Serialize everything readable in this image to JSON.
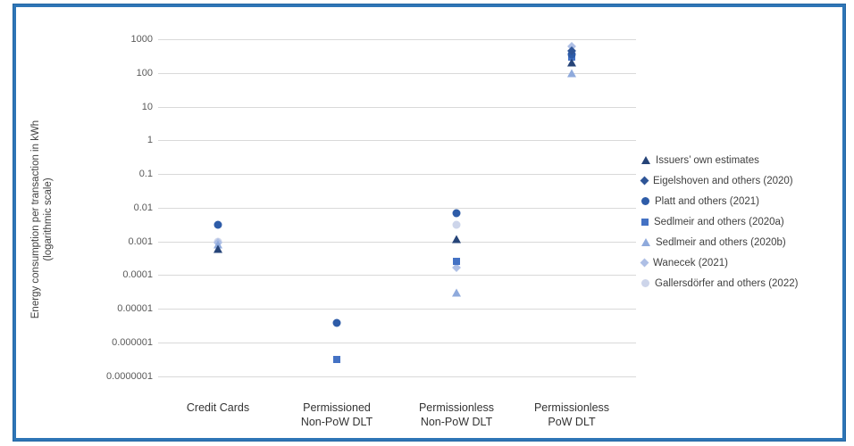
{
  "chart_data": {
    "type": "scatter",
    "y_axis_title_line1": "Energy consumption per transaction in kWh",
    "y_axis_title_line2": "(logarithmic scale)",
    "y_scale": "log10",
    "ylim": [
      1e-07,
      1000
    ],
    "grid": "horizontal",
    "legend_position": "right",
    "y_ticks": [
      "1000",
      "100",
      "10",
      "1",
      "0.1",
      "0.01",
      "0.001",
      "0.0001",
      "0.00001",
      "0.000001",
      "0.0000001"
    ],
    "categories": [
      {
        "key": "credit-cards",
        "lines": [
          "Credit Cards"
        ]
      },
      {
        "key": "permissioned-non-pow",
        "lines": [
          "Permissioned",
          "Non-PoW DLT"
        ]
      },
      {
        "key": "permissionless-non-pow",
        "lines": [
          "Permissionless",
          "Non-PoW DLT"
        ]
      },
      {
        "key": "permissionless-pow",
        "lines": [
          "Permissionless",
          "PoW DLT"
        ]
      }
    ],
    "series": [
      {
        "name": "Issuers’ own estimates",
        "marker": "triangle",
        "color": "#264478",
        "points": [
          {
            "category_index": 0,
            "value": 0.0006
          },
          {
            "category_index": 2,
            "value": 0.0012
          },
          {
            "category_index": 3,
            "value": 200
          }
        ]
      },
      {
        "name": "Eigelshoven and others (2020)",
        "marker": "diamond",
        "color": "#2F5597",
        "points": [
          {
            "category_index": 3,
            "value": 450
          }
        ]
      },
      {
        "name": "Platt and others (2021)",
        "marker": "circle",
        "color": "#2E5CA8",
        "points": [
          {
            "category_index": 0,
            "value": 0.003
          },
          {
            "category_index": 1,
            "value": 3.8e-06
          },
          {
            "category_index": 2,
            "value": 0.007
          },
          {
            "category_index": 3,
            "value": 350
          }
        ]
      },
      {
        "name": "Sedlmeir and others (2020a)",
        "marker": "square",
        "color": "#4472C4",
        "points": [
          {
            "category_index": 1,
            "value": 3e-07
          },
          {
            "category_index": 2,
            "value": 0.00026
          },
          {
            "category_index": 3,
            "value": 300
          }
        ]
      },
      {
        "name": "Sedlmeir and others (2020b)",
        "marker": "triangle",
        "color": "#8FAADC",
        "points": [
          {
            "category_index": 0,
            "value": 0.0008
          },
          {
            "category_index": 2,
            "value": 3e-05
          },
          {
            "category_index": 3,
            "value": 100
          }
        ]
      },
      {
        "name": "Wanecek (2021)",
        "marker": "diamond",
        "color": "#AEBFE5",
        "points": [
          {
            "category_index": 0,
            "value": 0.0009
          },
          {
            "category_index": 2,
            "value": 0.00017
          },
          {
            "category_index": 3,
            "value": 600
          }
        ]
      },
      {
        "name": "Gallersdörfer and others (2022)",
        "marker": "circle",
        "color": "#CDD5EA",
        "points": [
          {
            "category_index": 0,
            "value": 0.001
          },
          {
            "category_index": 2,
            "value": 0.003
          }
        ]
      }
    ]
  }
}
